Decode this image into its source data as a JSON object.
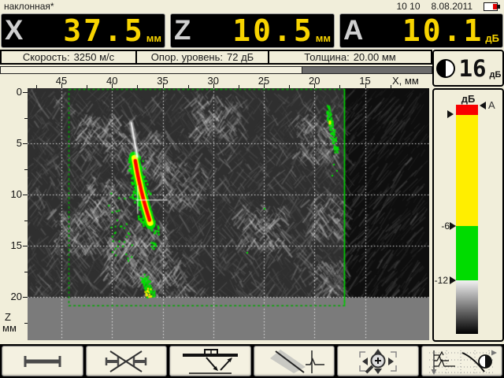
{
  "status_bar": {
    "mode": "наклонная*",
    "time": "10 10",
    "date": "8.08.2011",
    "battery": "battery-low"
  },
  "readouts": [
    {
      "label": "X",
      "value": "37.5",
      "unit": "мм"
    },
    {
      "label": "Z",
      "value": "10.5",
      "unit": "мм"
    },
    {
      "label": "A",
      "value": "10.1",
      "unit": "дБ"
    }
  ],
  "info_bar": {
    "fields": [
      {
        "label": "Скорость:",
        "value": "3250 м/с"
      },
      {
        "label": "Опор. уровень:",
        "value": "72 дБ"
      },
      {
        "label": "Толщина:",
        "value": "20.00 мм"
      }
    ],
    "scan_scroll_percent": 70
  },
  "gain": {
    "value": "16",
    "unit": "дБ",
    "icon": "contrast-icon"
  },
  "amplitude_bar": {
    "title": "дБ",
    "cursor_label": "A",
    "threshold_minus6": "-6",
    "threshold_minus12": "-12",
    "colors": {
      "over": "#f80000",
      "high": "#ffee00",
      "mid": "#00dc00"
    }
  },
  "chart_data": {
    "type": "heatmap",
    "title": "Ultrasonic B-scan image with flaw indications",
    "xlabel": "X, мм",
    "ylabel": "Z мм",
    "x_ticks": [
      45,
      40,
      35,
      30,
      25,
      20,
      15
    ],
    "z_ticks": [
      0,
      5,
      10,
      15,
      20
    ],
    "x_axis_reversed": true,
    "x_range_mm": [
      48.3,
      8.6
    ],
    "z_range_mm": [
      0,
      24.2
    ],
    "backwall_z_mm": 20,
    "grid": true,
    "roi": {
      "x_mm": [
        44.3,
        17.1
      ],
      "z_mm": [
        0,
        20.9
      ]
    },
    "cursor": {
      "x_mm": 37.5,
      "z_mm": 10.5
    },
    "indications": [
      {
        "name": "main-flaw",
        "x_mm": [
          37.8,
          36.2
        ],
        "z_mm": [
          6.3,
          12.9
        ],
        "peak_color": "red"
      },
      {
        "name": "near-surface-tail",
        "x_mm": [
          38.1,
          37.5
        ],
        "z_mm": [
          3.0,
          6.3
        ],
        "peak_color": "white"
      },
      {
        "name": "backwall-flaw",
        "x_mm": [
          36.9,
          36.1
        ],
        "z_mm": [
          18.0,
          20.3
        ],
        "peak_color": "yellow"
      },
      {
        "name": "side-indication",
        "x_mm": [
          18.8,
          17.9
        ],
        "z_mm": [
          1.3,
          5.8
        ],
        "peak_color": "green"
      }
    ],
    "amplitude_scale": {
      "over_db": 0,
      "minus6_db": -6,
      "minus12_db": -12
    }
  },
  "toolbar": {
    "buttons": [
      {
        "icon": "gate-icon"
      },
      {
        "icon": "gate-off-icon"
      },
      {
        "icon": "echo-path-icon"
      },
      {
        "icon": "beam-sector-icon"
      },
      {
        "icon": "pan-zoom-icon"
      },
      {
        "icon": "ascan-view-icon"
      }
    ]
  },
  "colors": {
    "background": "#f1eeda",
    "digit_yellow": "#f8d400",
    "display_bg": "#000000",
    "underwall_gray": "#7b7b7b",
    "roi_green": "#00a800"
  }
}
